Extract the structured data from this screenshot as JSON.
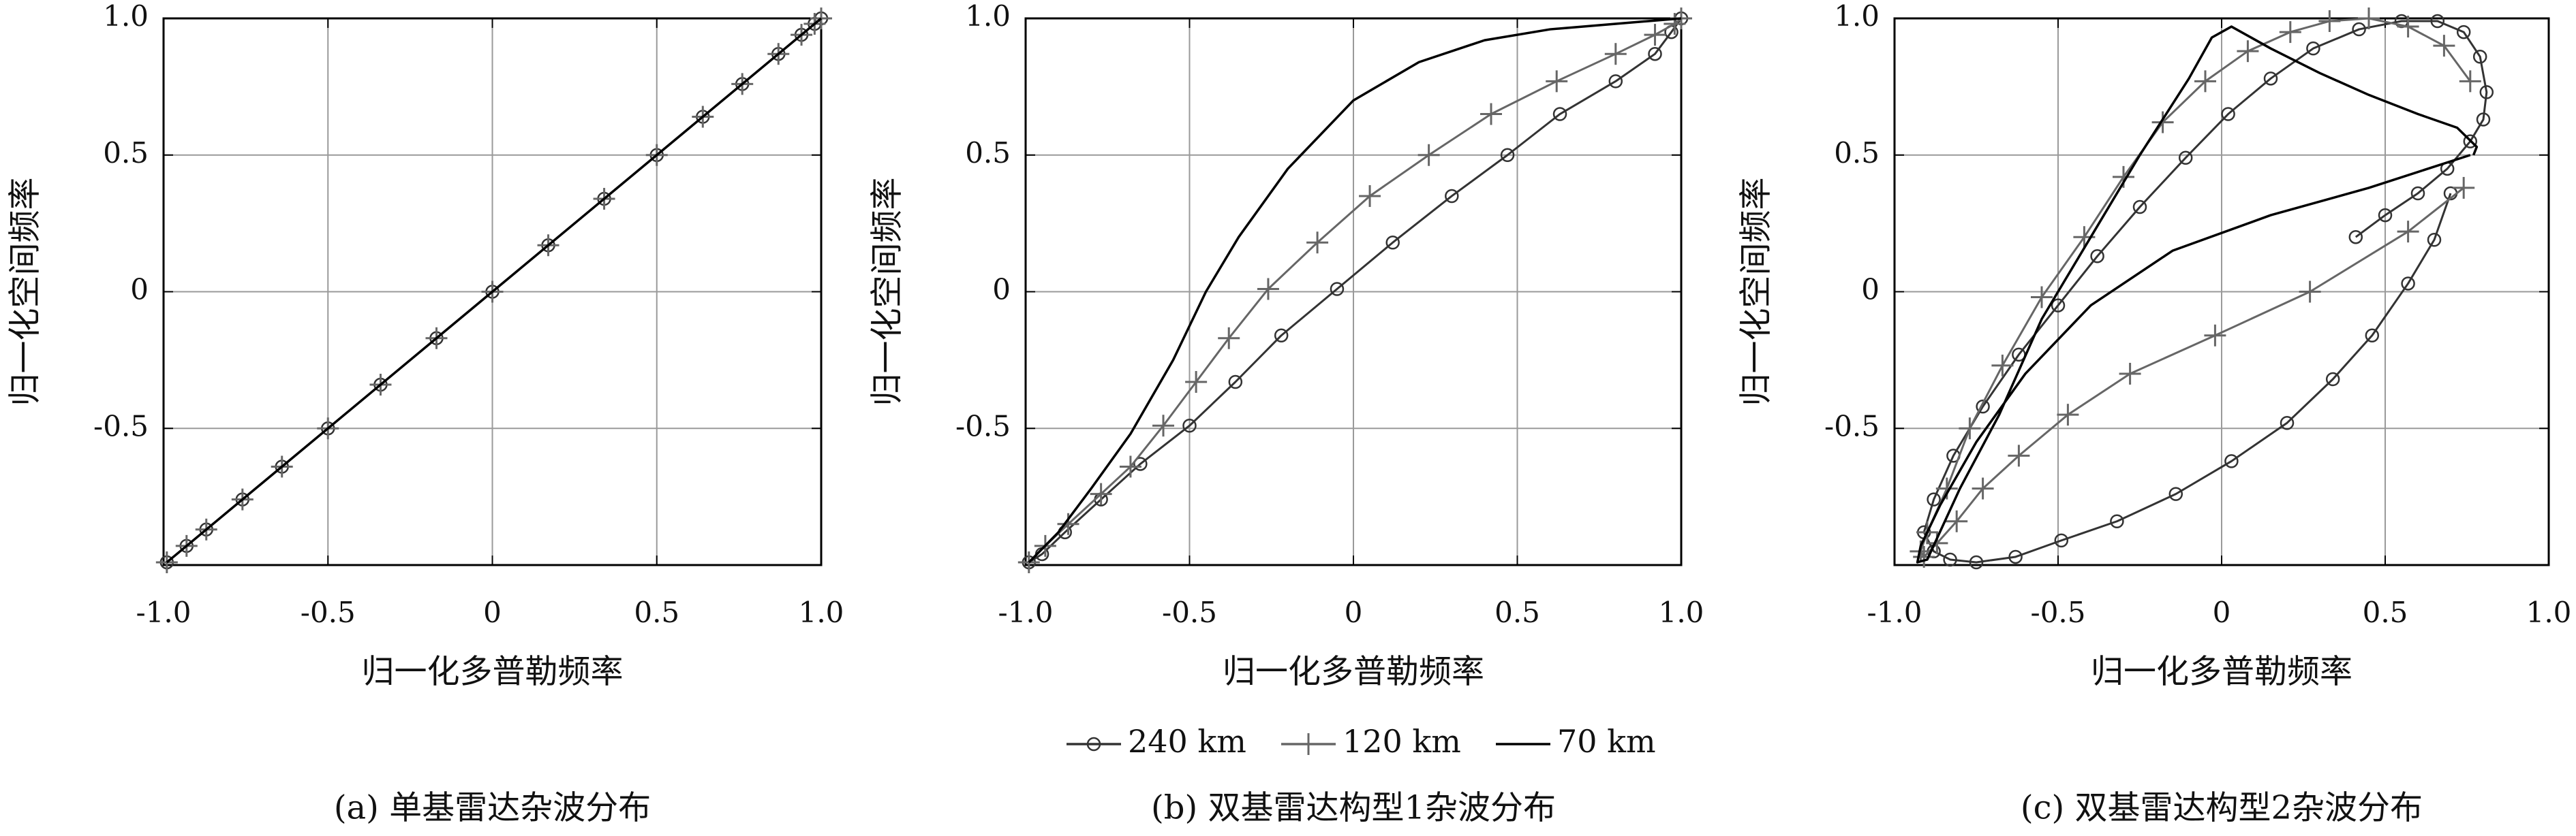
{
  "figure": {
    "legend": [
      {
        "label": "240 km",
        "marker": "circle",
        "color": "#333333"
      },
      {
        "label": "120 km",
        "marker": "plus",
        "color": "#666666"
      },
      {
        "label": "70 km",
        "marker": "none",
        "color": "#000000"
      }
    ]
  },
  "chart_data": [
    {
      "type": "line",
      "caption": "(a) 单基雷达杂波分布",
      "xlabel": "归一化多普勒频率",
      "ylabel": "归一化空间频率",
      "xlim": [
        -1,
        1
      ],
      "ylim": [
        -1,
        1
      ],
      "xticks": [
        "-1.0",
        "-0.5",
        "0",
        "0.5",
        "1.0"
      ],
      "yticks": [
        "-0.5",
        "0",
        "0.5",
        "1.0"
      ],
      "grid": true,
      "series": [
        {
          "name": "240 km",
          "marker": "circle",
          "x": [
            -0.99,
            -0.93,
            -0.87,
            -0.76,
            -0.64,
            -0.5,
            -0.34,
            -0.17,
            0,
            0.17,
            0.34,
            0.5,
            0.64,
            0.76,
            0.87,
            0.94,
            0.98,
            1.0
          ],
          "y": [
            -0.99,
            -0.93,
            -0.87,
            -0.76,
            -0.64,
            -0.5,
            -0.34,
            -0.17,
            0,
            0.17,
            0.34,
            0.5,
            0.64,
            0.76,
            0.87,
            0.94,
            0.98,
            1.0
          ]
        },
        {
          "name": "120 km",
          "marker": "plus",
          "x": [
            -0.99,
            -0.93,
            -0.87,
            -0.76,
            -0.64,
            -0.5,
            -0.34,
            -0.17,
            0,
            0.17,
            0.34,
            0.5,
            0.64,
            0.76,
            0.87,
            0.94,
            0.98,
            1.0
          ],
          "y": [
            -0.99,
            -0.93,
            -0.87,
            -0.76,
            -0.64,
            -0.5,
            -0.34,
            -0.17,
            0,
            0.17,
            0.34,
            0.5,
            0.64,
            0.76,
            0.87,
            0.94,
            0.98,
            1.0
          ]
        },
        {
          "name": "70 km",
          "marker": "none",
          "x": [
            -0.99,
            -0.5,
            0,
            0.5,
            1.0
          ],
          "y": [
            -0.99,
            -0.5,
            0,
            0.5,
            1.0
          ]
        }
      ]
    },
    {
      "type": "line",
      "caption": "(b) 双基雷达构型1杂波分布",
      "xlabel": "归一化多普勒频率",
      "ylabel": "归一化空间频率",
      "xlim": [
        -1,
        1
      ],
      "ylim": [
        -1,
        1
      ],
      "xticks": [
        "-1.0",
        "-0.5",
        "0",
        "0.5",
        "1.0"
      ],
      "yticks": [
        "-0.5",
        "0",
        "0.5",
        "1.0"
      ],
      "grid": true,
      "series": [
        {
          "name": "240 km",
          "marker": "circle",
          "x": [
            -0.99,
            -0.95,
            -0.88,
            -0.77,
            -0.65,
            -0.5,
            -0.36,
            -0.22,
            -0.05,
            0.12,
            0.3,
            0.47,
            0.63,
            0.8,
            0.92,
            0.97,
            1.0
          ],
          "y": [
            -0.99,
            -0.96,
            -0.88,
            -0.76,
            -0.63,
            -0.49,
            -0.33,
            -0.16,
            0.01,
            0.18,
            0.35,
            0.5,
            0.65,
            0.77,
            0.87,
            0.95,
            1.0
          ]
        },
        {
          "name": "120 km",
          "marker": "plus",
          "x": [
            -0.99,
            -0.94,
            -0.87,
            -0.77,
            -0.68,
            -0.58,
            -0.48,
            -0.38,
            -0.26,
            -0.11,
            0.05,
            0.23,
            0.42,
            0.62,
            0.8,
            0.92,
            0.98,
            1.0
          ],
          "y": [
            -0.99,
            -0.93,
            -0.85,
            -0.74,
            -0.64,
            -0.49,
            -0.33,
            -0.17,
            0.01,
            0.18,
            0.35,
            0.5,
            0.65,
            0.77,
            0.87,
            0.94,
            0.98,
            1.0
          ]
        },
        {
          "name": "70 km",
          "marker": "none",
          "x": [
            -0.99,
            -0.9,
            -0.8,
            -0.68,
            -0.55,
            -0.45,
            -0.35,
            -0.2,
            0,
            0.2,
            0.4,
            0.6,
            0.8,
            0.95,
            1.0
          ],
          "y": [
            -0.99,
            -0.88,
            -0.72,
            -0.52,
            -0.25,
            0.0,
            0.2,
            0.45,
            0.7,
            0.84,
            0.92,
            0.96,
            0.98,
            0.995,
            1.0
          ]
        }
      ]
    },
    {
      "type": "line",
      "caption": "(c) 双基雷达构型2杂波分布",
      "xlabel": "归一化多普勒频率",
      "ylabel": "归一化空间频率",
      "xlim": [
        -1,
        1
      ],
      "ylim": [
        -1,
        1
      ],
      "xticks": [
        "-1.0",
        "-0.5",
        "0",
        "0.5",
        "1.0"
      ],
      "yticks": [
        "-0.5",
        "0",
        "0.5",
        "1.0"
      ],
      "grid": true,
      "series": [
        {
          "name": "240 km",
          "marker": "circle",
          "x": [
            0.7,
            0.65,
            0.57,
            0.46,
            0.34,
            0.2,
            0.03,
            -0.14,
            -0.32,
            -0.49,
            -0.63,
            -0.75,
            -0.83,
            -0.88,
            -0.91,
            -0.88,
            -0.82,
            -0.73,
            -0.62,
            -0.5,
            -0.38,
            -0.25,
            -0.11,
            0.02,
            0.15,
            0.28,
            0.42,
            0.55,
            0.66,
            0.74,
            0.79,
            0.81,
            0.8,
            0.76,
            0.69,
            0.6,
            0.5,
            0.41
          ],
          "y": [
            0.36,
            0.19,
            0.03,
            -0.16,
            -0.32,
            -0.48,
            -0.62,
            -0.74,
            -0.84,
            -0.91,
            -0.97,
            -0.99,
            -0.98,
            -0.95,
            -0.88,
            -0.76,
            -0.6,
            -0.42,
            -0.23,
            -0.05,
            0.13,
            0.31,
            0.49,
            0.65,
            0.78,
            0.89,
            0.96,
            0.99,
            0.99,
            0.95,
            0.86,
            0.73,
            0.63,
            0.55,
            0.45,
            0.36,
            0.28,
            0.2
          ]
        },
        {
          "name": "120 km",
          "marker": "plus",
          "x": [
            0.74,
            0.57,
            0.27,
            -0.02,
            -0.28,
            -0.47,
            -0.62,
            -0.73,
            -0.81,
            -0.87,
            -0.91,
            -0.92,
            -0.9,
            -0.84,
            -0.77,
            -0.67,
            -0.55,
            -0.42,
            -0.3,
            -0.18,
            -0.05,
            0.08,
            0.21,
            0.33,
            0.45,
            0.57,
            0.68,
            0.76
          ],
          "y": [
            0.38,
            0.22,
            0.0,
            -0.16,
            -0.3,
            -0.45,
            -0.6,
            -0.72,
            -0.84,
            -0.92,
            -0.97,
            -0.95,
            -0.88,
            -0.72,
            -0.5,
            -0.27,
            -0.02,
            0.2,
            0.42,
            0.62,
            0.77,
            0.88,
            0.95,
            0.99,
            1.0,
            0.97,
            0.9,
            0.77
          ]
        },
        {
          "name": "70 km",
          "marker": "none",
          "x": [
            0.76,
            0.45,
            0.15,
            -0.15,
            -0.4,
            -0.6,
            -0.75,
            -0.86,
            -0.92,
            -0.93,
            -0.9,
            -0.8,
            -0.68,
            -0.55,
            -0.4,
            -0.25,
            -0.1,
            -0.03,
            0.03,
            0.15,
            0.3,
            0.45,
            0.6,
            0.72,
            0.78,
            0.77
          ],
          "y": [
            0.5,
            0.38,
            0.28,
            0.15,
            -0.05,
            -0.3,
            -0.55,
            -0.78,
            -0.93,
            -0.99,
            -0.98,
            -0.72,
            -0.45,
            -0.1,
            0.2,
            0.5,
            0.78,
            0.93,
            0.97,
            0.89,
            0.8,
            0.72,
            0.65,
            0.6,
            0.53,
            0.5
          ]
        }
      ]
    }
  ]
}
